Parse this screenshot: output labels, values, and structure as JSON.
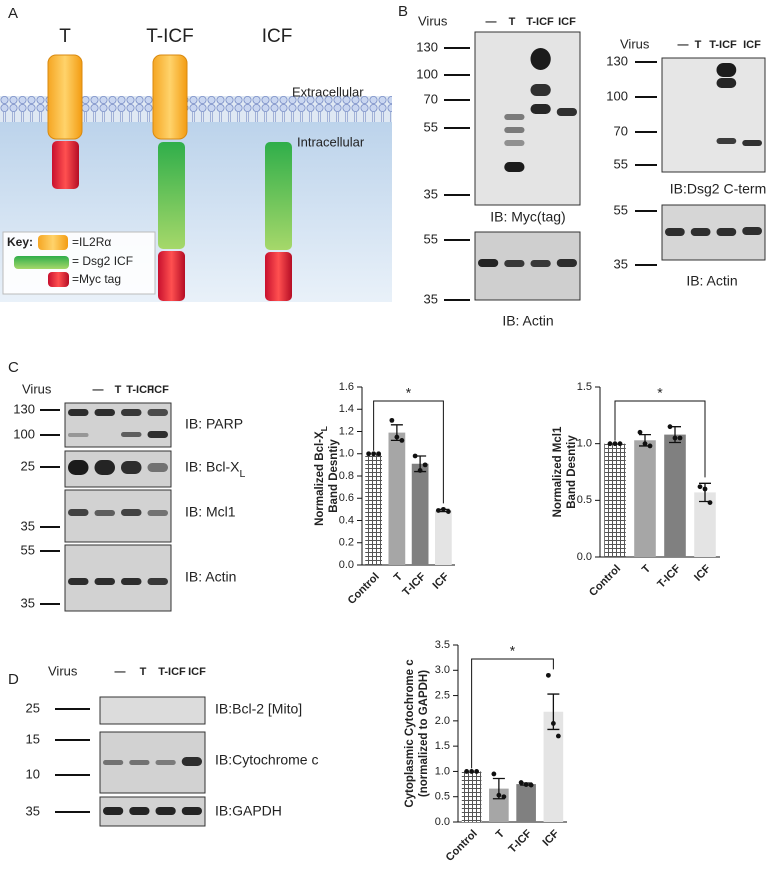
{
  "panel_a": {
    "label": "A",
    "constructs": [
      "T",
      "T-ICF",
      "ICF"
    ],
    "extracellular": "Extracellular",
    "intracellular": "Intracellular",
    "key": {
      "title": "Key:",
      "items": [
        "=IL2Rα",
        "= Dsg2 ICF",
        "=Myc tag"
      ]
    }
  },
  "panel_b": {
    "label": "B",
    "blot1": {
      "virus": "Virus",
      "lanes": [
        "—",
        "T",
        "T-ICF",
        "ICF"
      ],
      "markers": [
        "130",
        "100",
        "70",
        "55",
        "35"
      ],
      "label": "IB: Myc(tag)",
      "actin_markers": [
        "55",
        "35"
      ],
      "actin_label": "IB: Actin"
    },
    "blot2": {
      "virus": "Virus",
      "lanes": [
        "—",
        "T",
        "T-ICF",
        "ICF"
      ],
      "markers": [
        "130",
        "100",
        "70",
        "55"
      ],
      "label": "IB:Dsg2 C-term",
      "actin_markers": [
        "55",
        "35"
      ],
      "actin_label": "IB: Actin"
    }
  },
  "panel_c": {
    "label": "C",
    "virus": "Virus",
    "lanes": [
      "—",
      "T",
      "T-ICF",
      "ICF"
    ],
    "markers": [
      "130",
      "100",
      "25",
      "35",
      "55",
      "35"
    ],
    "blots": [
      "IB: PARP",
      "IB: Bcl-X",
      "IB: Mcl1",
      "IB: Actin"
    ],
    "bcl_sub": "L"
  },
  "panel_d": {
    "label": "D",
    "virus": "Virus",
    "lanes": [
      "—",
      "T",
      "T-ICF",
      "ICF"
    ],
    "markers": [
      "25",
      "15",
      "10",
      "35"
    ],
    "blots": [
      "IB:Bcl-2 [Mito]",
      "IB:Cytochrome c",
      "IB:GAPDH"
    ]
  },
  "chart_data": [
    {
      "type": "bar",
      "ylabel": [
        "Normalized Bcl-X",
        "Band Desntiy"
      ],
      "ylabel_sub": "L",
      "categories": [
        "Control",
        "T",
        "T-ICF",
        "ICF"
      ],
      "values": [
        1.0,
        1.19,
        0.91,
        0.49
      ],
      "errors": [
        0,
        0.07,
        0.07,
        0.01
      ],
      "points": [
        [
          1,
          1,
          1
        ],
        [
          1.3,
          1.15,
          1.12
        ],
        [
          0.98,
          0.85,
          0.9
        ],
        [
          0.49,
          0.5,
          0.48
        ]
      ],
      "colors": [
        "#555555",
        "#a6a6a6",
        "#808080",
        "#e4e4e4"
      ],
      "hatched_categories": [
        0
      ],
      "ylim": [
        0,
        1.6
      ],
      "yticks": [
        {
          "value": 0,
          "label": "0.0"
        },
        0.2,
        0.4,
        0.6,
        0.8,
        {
          "value": 1,
          "label": "1.0"
        },
        1.2,
        1.4,
        1.6
      ],
      "annotation": "*"
    },
    {
      "type": "bar",
      "ylabel": [
        "Normalized Mcl1",
        "Band Desntiy"
      ],
      "categories": [
        "Control",
        "T",
        "T-ICF",
        "ICF"
      ],
      "values": [
        1.0,
        1.03,
        1.08,
        0.57
      ],
      "errors": [
        0,
        0.05,
        0.07,
        0.08
      ],
      "points": [
        [
          1,
          1,
          1
        ],
        [
          1.1,
          1.0,
          0.98
        ],
        [
          1.15,
          1.05,
          1.05
        ],
        [
          0.62,
          0.6,
          0.48
        ]
      ],
      "colors": [
        "#555555",
        "#a6a6a6",
        "#808080",
        "#e4e4e4"
      ],
      "hatched_categories": [
        0
      ],
      "ylim": [
        0,
        1.5
      ],
      "yticks": [
        {
          "value": 0,
          "label": "0.0"
        },
        0.5,
        {
          "value": 1,
          "label": "1.0"
        },
        1.5
      ],
      "annotation": "*"
    },
    {
      "type": "bar",
      "ylabel": [
        "Cytoplasmic Cytochrome c",
        "(normalized to GAPDH)"
      ],
      "categories": [
        "Control",
        "T",
        "T-ICF",
        "ICF"
      ],
      "values": [
        1.0,
        0.66,
        0.75,
        2.18
      ],
      "errors": [
        0,
        0.2,
        0.02,
        0.35
      ],
      "points": [
        [
          1,
          1,
          1
        ],
        [
          0.95,
          0.53,
          0.5
        ],
        [
          0.78,
          0.74,
          0.73
        ],
        [
          2.9,
          1.95,
          1.7
        ]
      ],
      "colors": [
        "#555555",
        "#a6a6a6",
        "#808080",
        "#e4e4e4"
      ],
      "hatched_categories": [
        0
      ],
      "ylim": [
        0,
        3.5
      ],
      "yticks": [
        {
          "value": 0,
          "label": "0.0"
        },
        0.5,
        {
          "value": 1,
          "label": "1.0"
        },
        1.5,
        {
          "value": 2,
          "label": "2.0"
        },
        2.5,
        {
          "value": 3,
          "label": "3.0"
        },
        3.5
      ],
      "annotation": "*"
    }
  ]
}
